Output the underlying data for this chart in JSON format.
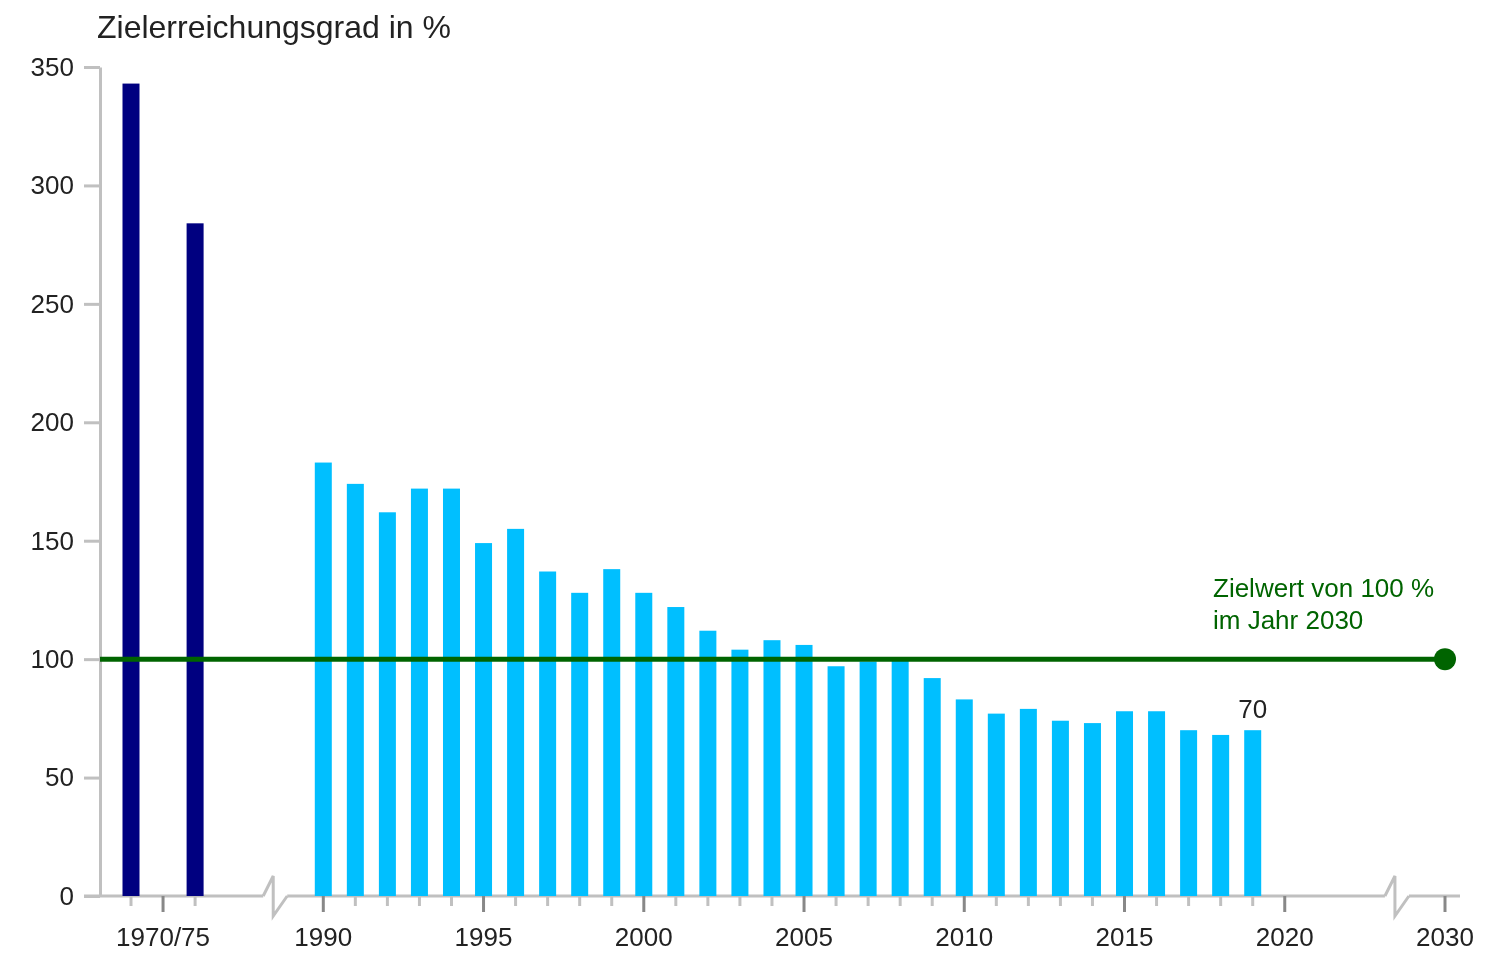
{
  "chart_data": {
    "type": "bar",
    "ylabel": "Zielerreichungsgrad in %",
    "categories": [
      null,
      "1970/75",
      null,
      null,
      null,
      null,
      "1990",
      null,
      null,
      null,
      null,
      "1995",
      null,
      null,
      null,
      null,
      "2000",
      null,
      null,
      null,
      null,
      "2005",
      null,
      null,
      null,
      null,
      "2010",
      null,
      null,
      null,
      null,
      "2015",
      null,
      null,
      null,
      null,
      "2020",
      null,
      null,
      null,
      null,
      "2030"
    ],
    "values": [
      343,
      null,
      284,
      null,
      null,
      null,
      183,
      174,
      162,
      172,
      172,
      149,
      155,
      137,
      128,
      138,
      128,
      122,
      112,
      104,
      108,
      106,
      97,
      99,
      100,
      92,
      83,
      77,
      79,
      74,
      73,
      78,
      78,
      70,
      68,
      70,
      null,
      null,
      null,
      null,
      null,
      null
    ],
    "colors": [
      "#000080",
      null,
      "#000080",
      null,
      null,
      null,
      "#00bfff",
      "#00bfff",
      "#00bfff",
      "#00bfff",
      "#00bfff",
      "#00bfff",
      "#00bfff",
      "#00bfff",
      "#00bfff",
      "#00bfff",
      "#00bfff",
      "#00bfff",
      "#00bfff",
      "#00bfff",
      "#00bfff",
      "#00bfff",
      "#00bfff",
      "#00bfff",
      "#00bfff",
      "#00bfff",
      "#00bfff",
      "#00bfff",
      "#00bfff",
      "#00bfff",
      "#00bfff",
      "#00bfff",
      "#00bfff",
      "#00bfff",
      "#00bfff",
      "#00bfff",
      null,
      null,
      null,
      null,
      null,
      null
    ],
    "value_labels": [
      null,
      null,
      null,
      null,
      null,
      null,
      null,
      null,
      null,
      null,
      null,
      null,
      null,
      null,
      null,
      null,
      null,
      null,
      null,
      null,
      null,
      null,
      null,
      null,
      null,
      null,
      null,
      null,
      null,
      null,
      null,
      null,
      null,
      null,
      null,
      "70",
      null,
      null,
      null,
      null,
      null,
      null
    ],
    "ylim": [
      0,
      350
    ],
    "yticks": [
      0,
      50,
      100,
      150,
      200,
      250,
      300,
      350
    ],
    "grid": false,
    "ref_lines": [
      {
        "axis": "y",
        "value": 100,
        "label": "Zielwert von 100 %\nim Jahr 2030",
        "color": "#006400"
      }
    ]
  }
}
